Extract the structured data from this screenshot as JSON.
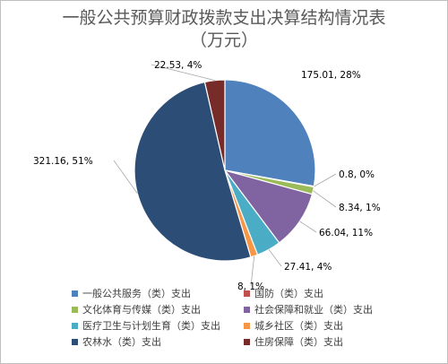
{
  "chart_data": {
    "type": "pie",
    "title_line1": "一般公共预算财政拨款支出决算结构情况表",
    "title_line2": "（万元）",
    "slices": [
      {
        "name": "一般公共服务（类）支出",
        "value": 175.01,
        "label": "175.01, 28%",
        "color": "#4f81bd"
      },
      {
        "name": "国防（类）支出",
        "value": 0.8,
        "label": "0.8, 0%",
        "color": "#c0504d"
      },
      {
        "name": "文化体育与传媒（类）支出",
        "value": 8.34,
        "label": "8.34, 1%",
        "color": "#9bbb59"
      },
      {
        "name": "社会保障和就业（类）支出",
        "value": 66.04,
        "label": "66.04, 11%",
        "color": "#8064a2"
      },
      {
        "name": "医疗卫生与计划生育（类）支出",
        "value": 27.41,
        "label": "27.41, 4%",
        "color": "#4bacc6"
      },
      {
        "name": "城乡社区（类）支出",
        "value": 8,
        "label": "8, 1%",
        "color": "#f79646"
      },
      {
        "name": "农林水（类）支出",
        "value": 321.16,
        "label": "321.16, 51%",
        "color": "#2c4d75"
      },
      {
        "name": "住房保障（类）支出",
        "value": 22.53,
        "label": "22.53, 4%",
        "color": "#772c2a"
      }
    ],
    "legend_position": "bottom"
  }
}
